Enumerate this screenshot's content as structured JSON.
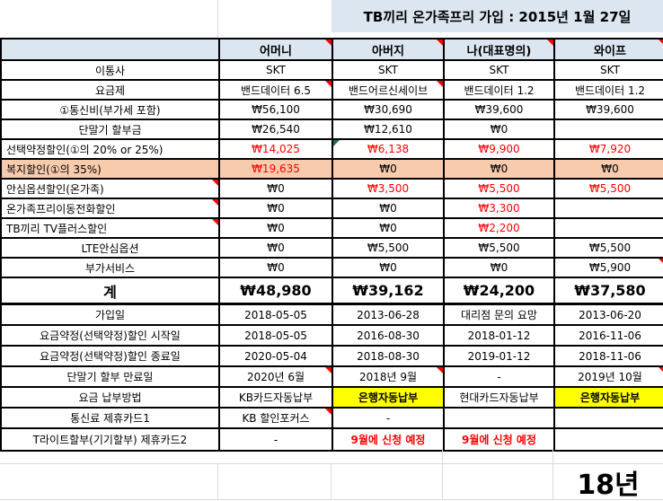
{
  "title": "TB끼리 온가족프리 가입 : 2015년 1월 27일",
  "footer": {
    "year_note": "18년"
  },
  "colors": {
    "header_bg": "#DCE6F1",
    "orange_row_bg": "#F8CBAD",
    "yellow_highlight_bg": "#FFFF00",
    "negative_or_discount_text": "#FF0000",
    "comment_indicator": "#FF0000",
    "error_indicator": "#217346",
    "grid_border": "#000000",
    "faint_gridline": "#D9D9D9"
  },
  "columns": [
    {
      "label": "어머니",
      "comment": true
    },
    {
      "label": "아버지",
      "comment": true
    },
    {
      "label": "나(대표명의)",
      "comment": true
    },
    {
      "label": "와이프",
      "comment": true
    }
  ],
  "rows": [
    {
      "label": "이통사",
      "cells": [
        {
          "t": "SKT"
        },
        {
          "t": "SKT"
        },
        {
          "t": "SKT"
        },
        {
          "t": "SKT"
        }
      ]
    },
    {
      "label": "요금제",
      "cells": [
        {
          "t": "밴드데이터 6.5",
          "comment": true
        },
        {
          "t": "밴드어르신세이브",
          "comment": true
        },
        {
          "t": "밴드데이터 1.2"
        },
        {
          "t": "밴드데이터 1.2"
        }
      ]
    },
    {
      "label": "①통신비(부가세 포함)",
      "cells": [
        {
          "t": "₩56,100"
        },
        {
          "t": "₩30,690"
        },
        {
          "t": "₩39,600"
        },
        {
          "t": "₩39,600"
        }
      ]
    },
    {
      "label": "단말기 할부금",
      "cells": [
        {
          "t": "₩26,540"
        },
        {
          "t": "₩12,610"
        },
        {
          "t": "₩0"
        },
        {
          "t": ""
        }
      ]
    },
    {
      "label": "선택약정할인(①의 20% or 25%)",
      "labelAlign": "left",
      "cells": [
        {
          "t": "₩14,025",
          "red": true
        },
        {
          "t": "₩6,138",
          "red": true,
          "error": true
        },
        {
          "t": "₩9,900",
          "red": true
        },
        {
          "t": "₩7,920",
          "red": true
        }
      ]
    },
    {
      "label": "복지할인(①의 35%)",
      "labelAlign": "left",
      "bg": "orange",
      "cells": [
        {
          "t": "₩19,635",
          "red": true
        },
        {
          "t": "₩0"
        },
        {
          "t": "₩0"
        },
        {
          "t": "₩0"
        }
      ]
    },
    {
      "label": "안심옵션할인(온가족)",
      "labelAlign": "left",
      "labelComment": true,
      "cells": [
        {
          "t": "₩0"
        },
        {
          "t": "₩3,500",
          "red": true
        },
        {
          "t": "₩5,500",
          "red": true
        },
        {
          "t": "₩5,500",
          "red": true
        }
      ]
    },
    {
      "label": "온가족프리이동전화할인",
      "labelAlign": "left",
      "labelComment": true,
      "cells": [
        {
          "t": "₩0"
        },
        {
          "t": "₩0"
        },
        {
          "t": "₩3,300",
          "red": true
        },
        {
          "t": ""
        }
      ]
    },
    {
      "label": "TB끼리 TV플러스할인",
      "labelAlign": "left",
      "labelComment": true,
      "cells": [
        {
          "t": "₩0"
        },
        {
          "t": "₩0"
        },
        {
          "t": "₩2,200",
          "red": true
        },
        {
          "t": ""
        }
      ]
    },
    {
      "label": "LTE안심옵션",
      "cells": [
        {
          "t": "₩0"
        },
        {
          "t": "₩5,500"
        },
        {
          "t": "₩5,500"
        },
        {
          "t": "₩5,500"
        }
      ]
    },
    {
      "label": "부가서비스",
      "cells": [
        {
          "t": "₩0"
        },
        {
          "t": "₩0"
        },
        {
          "t": "₩0"
        },
        {
          "t": "₩5,900",
          "comment": true
        }
      ]
    },
    {
      "label": "계",
      "total": true,
      "cells": [
        {
          "t": "₩48,980"
        },
        {
          "t": "₩39,162"
        },
        {
          "t": "₩24,200"
        },
        {
          "t": "₩37,580"
        }
      ]
    },
    {
      "label": "가입일",
      "cells": [
        {
          "t": "2018-05-05"
        },
        {
          "t": "2013-06-28"
        },
        {
          "t": "대리점 문의 요망"
        },
        {
          "t": "2013-06-20"
        }
      ]
    },
    {
      "label": "요금약정(선택약정)할인 시작일",
      "cells": [
        {
          "t": "2018-05-05"
        },
        {
          "t": "2016-08-30"
        },
        {
          "t": "2018-01-12"
        },
        {
          "t": "2016-11-06"
        }
      ]
    },
    {
      "label": "요금약정(선택약정)할인 종료일",
      "cells": [
        {
          "t": "2020-05-04"
        },
        {
          "t": "2018-08-30"
        },
        {
          "t": "2019-01-12"
        },
        {
          "t": "2018-11-06"
        }
      ]
    },
    {
      "label": "단말기 할부 만료일",
      "cells": [
        {
          "t": "2020년 6월",
          "comment": true
        },
        {
          "t": "2018년 9월",
          "comment": true
        },
        {
          "t": "-"
        },
        {
          "t": "2019년 10월",
          "comment": true
        }
      ]
    },
    {
      "label": "요금 납부방법",
      "cells": [
        {
          "t": "KB카드자동납부"
        },
        {
          "t": "은행자동납부",
          "bg": "yellow"
        },
        {
          "t": "현대카드자동납부"
        },
        {
          "t": "은행자동납부",
          "bg": "yellow"
        }
      ]
    },
    {
      "label": "통신료 제휴카드1",
      "cells": [
        {
          "t": "KB 할인포커스",
          "comment": true
        },
        {
          "t": "-"
        },
        {
          "t": ""
        },
        {
          "t": ""
        }
      ]
    },
    {
      "label": "T라이트할부(기기할부) 제휴카드2",
      "cells": [
        {
          "t": "-"
        },
        {
          "t": "9월에 신청 예정",
          "red": true,
          "bold": true
        },
        {
          "t": "9월에 신청 예정",
          "red": true,
          "bold": true
        },
        {
          "t": ""
        }
      ]
    }
  ]
}
